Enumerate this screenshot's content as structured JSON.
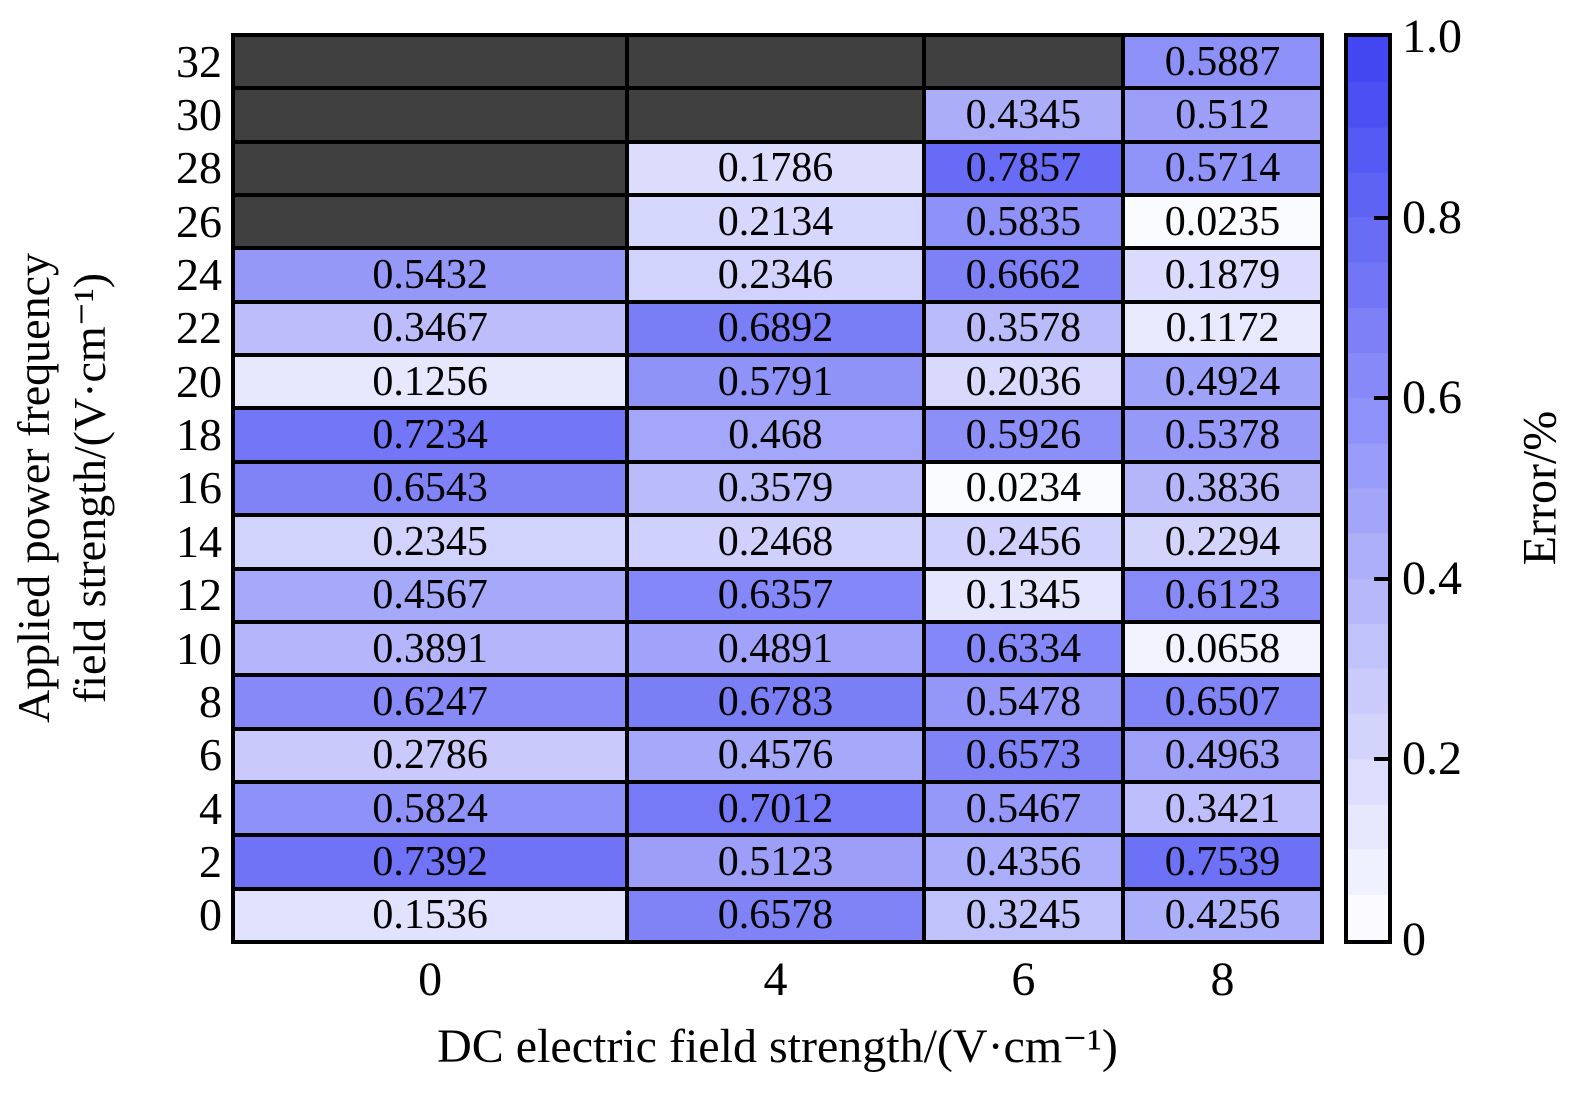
{
  "chart_data": {
    "type": "heatmap",
    "xlabel": "DC electric field strength/(V·cm⁻¹)",
    "ylabel_line1": "Applied power frequency",
    "ylabel_line2": "field strength/(V·cm⁻¹)",
    "colorbar_label": "Error/%",
    "x_categories": [
      "0",
      "4",
      "6",
      "8"
    ],
    "y_categories_top_to_bottom": [
      "32",
      "30",
      "28",
      "26",
      "24",
      "22",
      "20",
      "18",
      "16",
      "14",
      "12",
      "10",
      "8",
      "6",
      "4",
      "2",
      "0"
    ],
    "rows": [
      {
        "y": "32",
        "values": [
          null,
          null,
          null,
          0.5887
        ]
      },
      {
        "y": "30",
        "values": [
          null,
          null,
          0.4345,
          0.512
        ]
      },
      {
        "y": "28",
        "values": [
          null,
          0.1786,
          0.7857,
          0.5714
        ]
      },
      {
        "y": "26",
        "values": [
          null,
          0.2134,
          0.5835,
          0.0235
        ]
      },
      {
        "y": "24",
        "values": [
          0.5432,
          0.2346,
          0.6662,
          0.1879
        ]
      },
      {
        "y": "22",
        "values": [
          0.3467,
          0.6892,
          0.3578,
          0.1172
        ]
      },
      {
        "y": "20",
        "values": [
          0.1256,
          0.5791,
          0.2036,
          0.4924
        ]
      },
      {
        "y": "18",
        "values": [
          0.7234,
          0.468,
          0.5926,
          0.5378
        ]
      },
      {
        "y": "16",
        "values": [
          0.6543,
          0.3579,
          0.0234,
          0.3836
        ]
      },
      {
        "y": "14",
        "values": [
          0.2345,
          0.2468,
          0.2456,
          0.2294
        ]
      },
      {
        "y": "12",
        "values": [
          0.4567,
          0.6357,
          0.1345,
          0.6123
        ]
      },
      {
        "y": "10",
        "values": [
          0.3891,
          0.4891,
          0.6334,
          0.0658
        ]
      },
      {
        "y": "8",
        "values": [
          0.6247,
          0.6783,
          0.5478,
          0.6507
        ]
      },
      {
        "y": "6",
        "values": [
          0.2786,
          0.4576,
          0.6573,
          0.4963
        ]
      },
      {
        "y": "4",
        "values": [
          0.5824,
          0.7012,
          0.5467,
          0.3421
        ]
      },
      {
        "y": "2",
        "values": [
          0.7392,
          0.5123,
          0.4356,
          0.7539
        ]
      },
      {
        "y": "0",
        "values": [
          0.1536,
          0.6578,
          0.3245,
          0.4256
        ]
      }
    ],
    "colorbar_ticks": [
      {
        "label": "1.0",
        "value": 1.0
      },
      {
        "label": "0.8",
        "value": 0.8
      },
      {
        "label": "0.6",
        "value": 0.6
      },
      {
        "label": "0.4",
        "value": 0.4
      },
      {
        "label": "0.2",
        "value": 0.2
      },
      {
        "label": "0",
        "value": 0.0
      }
    ],
    "colorbar_tickmarks": [
      0.8,
      0.6,
      0.4,
      0.2
    ],
    "colorbar_steps": 20,
    "value_range": [
      0,
      1
    ],
    "colors": {
      "low": "#ffffff",
      "high": "#3d42f2",
      "missing": "#404040",
      "grid": "#000000"
    },
    "legend_position": "right-colorbar",
    "grid": "on"
  }
}
